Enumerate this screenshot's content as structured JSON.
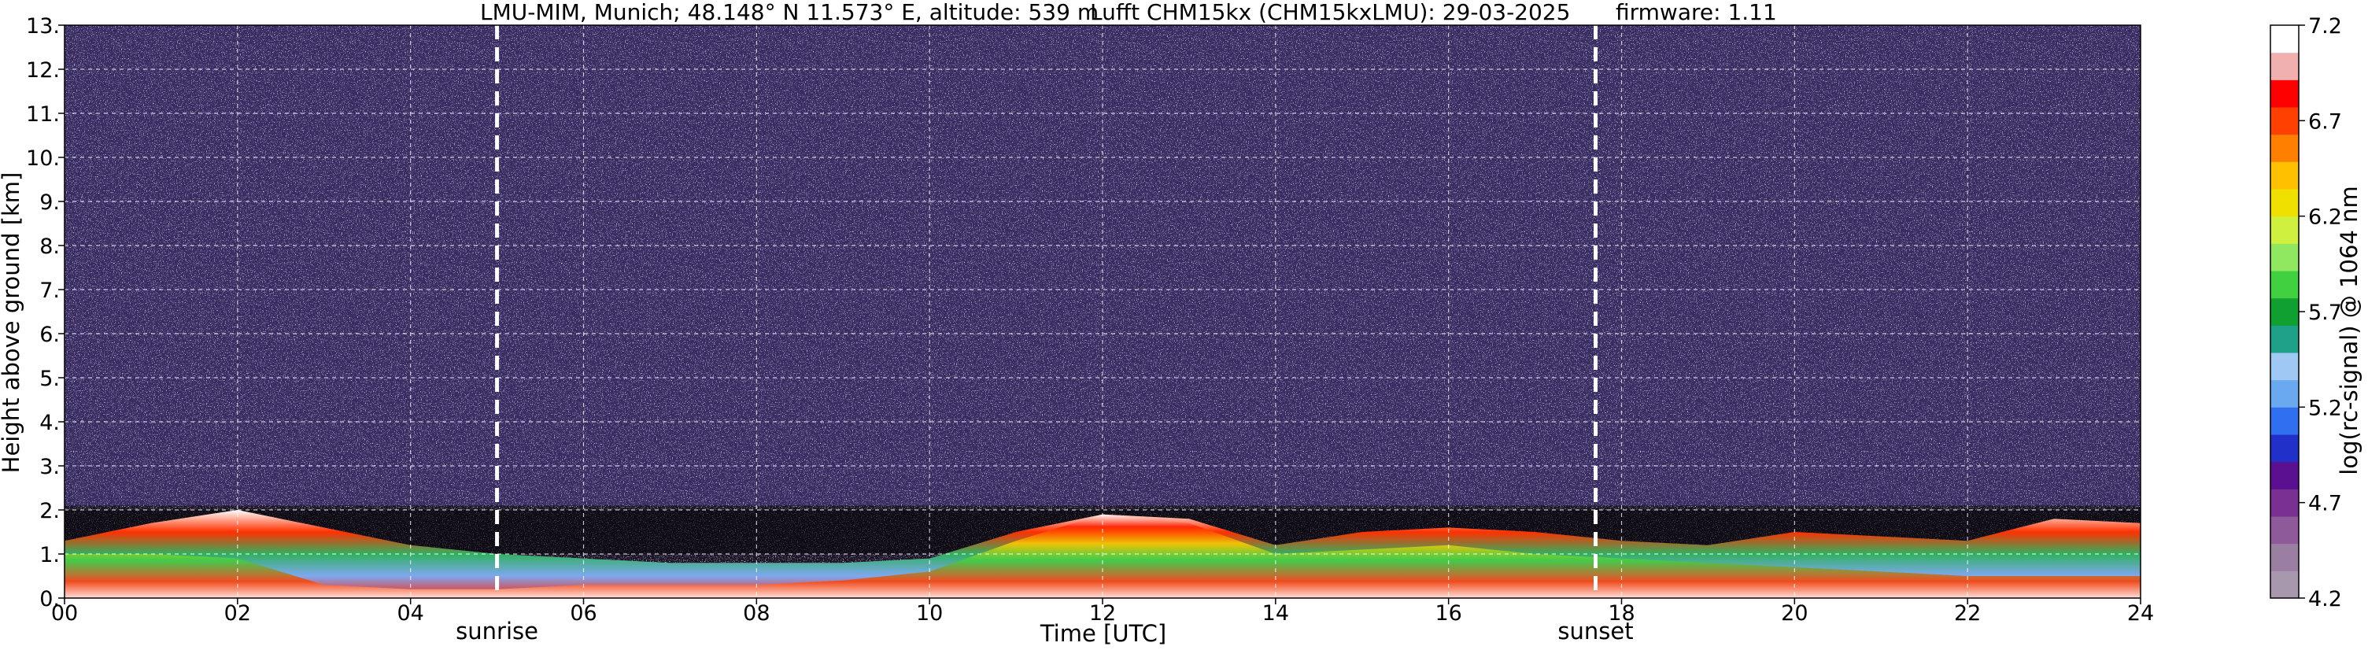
{
  "chart_data": {
    "type": "heatmap",
    "title": {
      "location": "LMU-MIM, Munich; 48.148° N 11.573° E, altitude: 539 m",
      "instrument": "Lufft CHM15kx (CHM15kxLMU): 29-03-2025",
      "firmware": "firmware: 1.11"
    },
    "xlabel": "Time [UTC]",
    "ylabel": "Height above ground [km]",
    "xlim": [
      0,
      24
    ],
    "ylim": [
      0,
      13
    ],
    "x_ticks": [
      0,
      2,
      4,
      6,
      8,
      10,
      12,
      14,
      16,
      18,
      20,
      22,
      24
    ],
    "x_tick_labels": [
      "00",
      "02",
      "04",
      "06",
      "08",
      "10",
      "12",
      "14",
      "16",
      "18",
      "20",
      "22",
      "24"
    ],
    "y_ticks": [
      0,
      1,
      2,
      3,
      4,
      5,
      6,
      7,
      8,
      9,
      10,
      11,
      12,
      13
    ],
    "y_tick_labels": [
      "0.",
      "1.",
      "2.",
      "3.",
      "4.",
      "5.",
      "6.",
      "7.",
      "8.",
      "9.",
      "10.",
      "11.",
      "12.",
      "13."
    ],
    "grid": true,
    "markers": [
      {
        "label": "sunrise",
        "x": 5.0
      },
      {
        "label": "sunset",
        "x": 17.7
      }
    ],
    "colorbar": {
      "label": "log(rc-signal) @ 1064 nm",
      "range": [
        4.2,
        7.2
      ],
      "tick_values": [
        4.2,
        4.7,
        5.2,
        5.7,
        6.2,
        6.7,
        7.2
      ],
      "tick_labels": [
        "4.2",
        "4.7",
        "5.2",
        "5.7",
        "6.2",
        "6.7",
        "7.2"
      ],
      "colors": [
        "#a898ad",
        "#9a7fa3",
        "#8e5a9a",
        "#7a2f93",
        "#5a1090",
        "#2030c8",
        "#2f6ff0",
        "#6aa8f0",
        "#9fc8f4",
        "#1fa088",
        "#10a030",
        "#40d040",
        "#90e860",
        "#d0f040",
        "#f0e000",
        "#ffc000",
        "#ff8000",
        "#ff4000",
        "#ff0000",
        "#f0b0b0",
        "#ffffff"
      ]
    },
    "layers": {
      "noise_top_km": [
        1.2,
        1.3,
        1.3,
        1.2,
        1.1,
        1.1,
        1.1,
        1.0,
        1.0,
        1.0,
        1.1,
        1.3,
        1.9,
        2.0,
        1.5,
        1.3,
        1.3,
        1.3,
        1.4,
        1.5,
        1.5,
        1.6,
        1.7,
        1.9,
        2.3
      ],
      "aerosol_top_km": [
        1.3,
        1.7,
        2.0,
        1.6,
        1.2,
        1.0,
        0.9,
        0.8,
        0.8,
        0.8,
        0.9,
        1.5,
        1.9,
        1.8,
        1.2,
        1.5,
        1.6,
        1.5,
        1.3,
        1.2,
        1.5,
        1.4,
        1.3,
        1.8,
        1.7
      ],
      "high_top_km": [
        1.0,
        1.0,
        0.9,
        0.3,
        0.2,
        0.2,
        0.3,
        0.3,
        0.3,
        0.4,
        0.6,
        1.3,
        1.9,
        1.7,
        1.0,
        1.1,
        1.2,
        1.0,
        0.9,
        0.8,
        0.7,
        0.6,
        0.5,
        0.5,
        0.5
      ]
    }
  }
}
